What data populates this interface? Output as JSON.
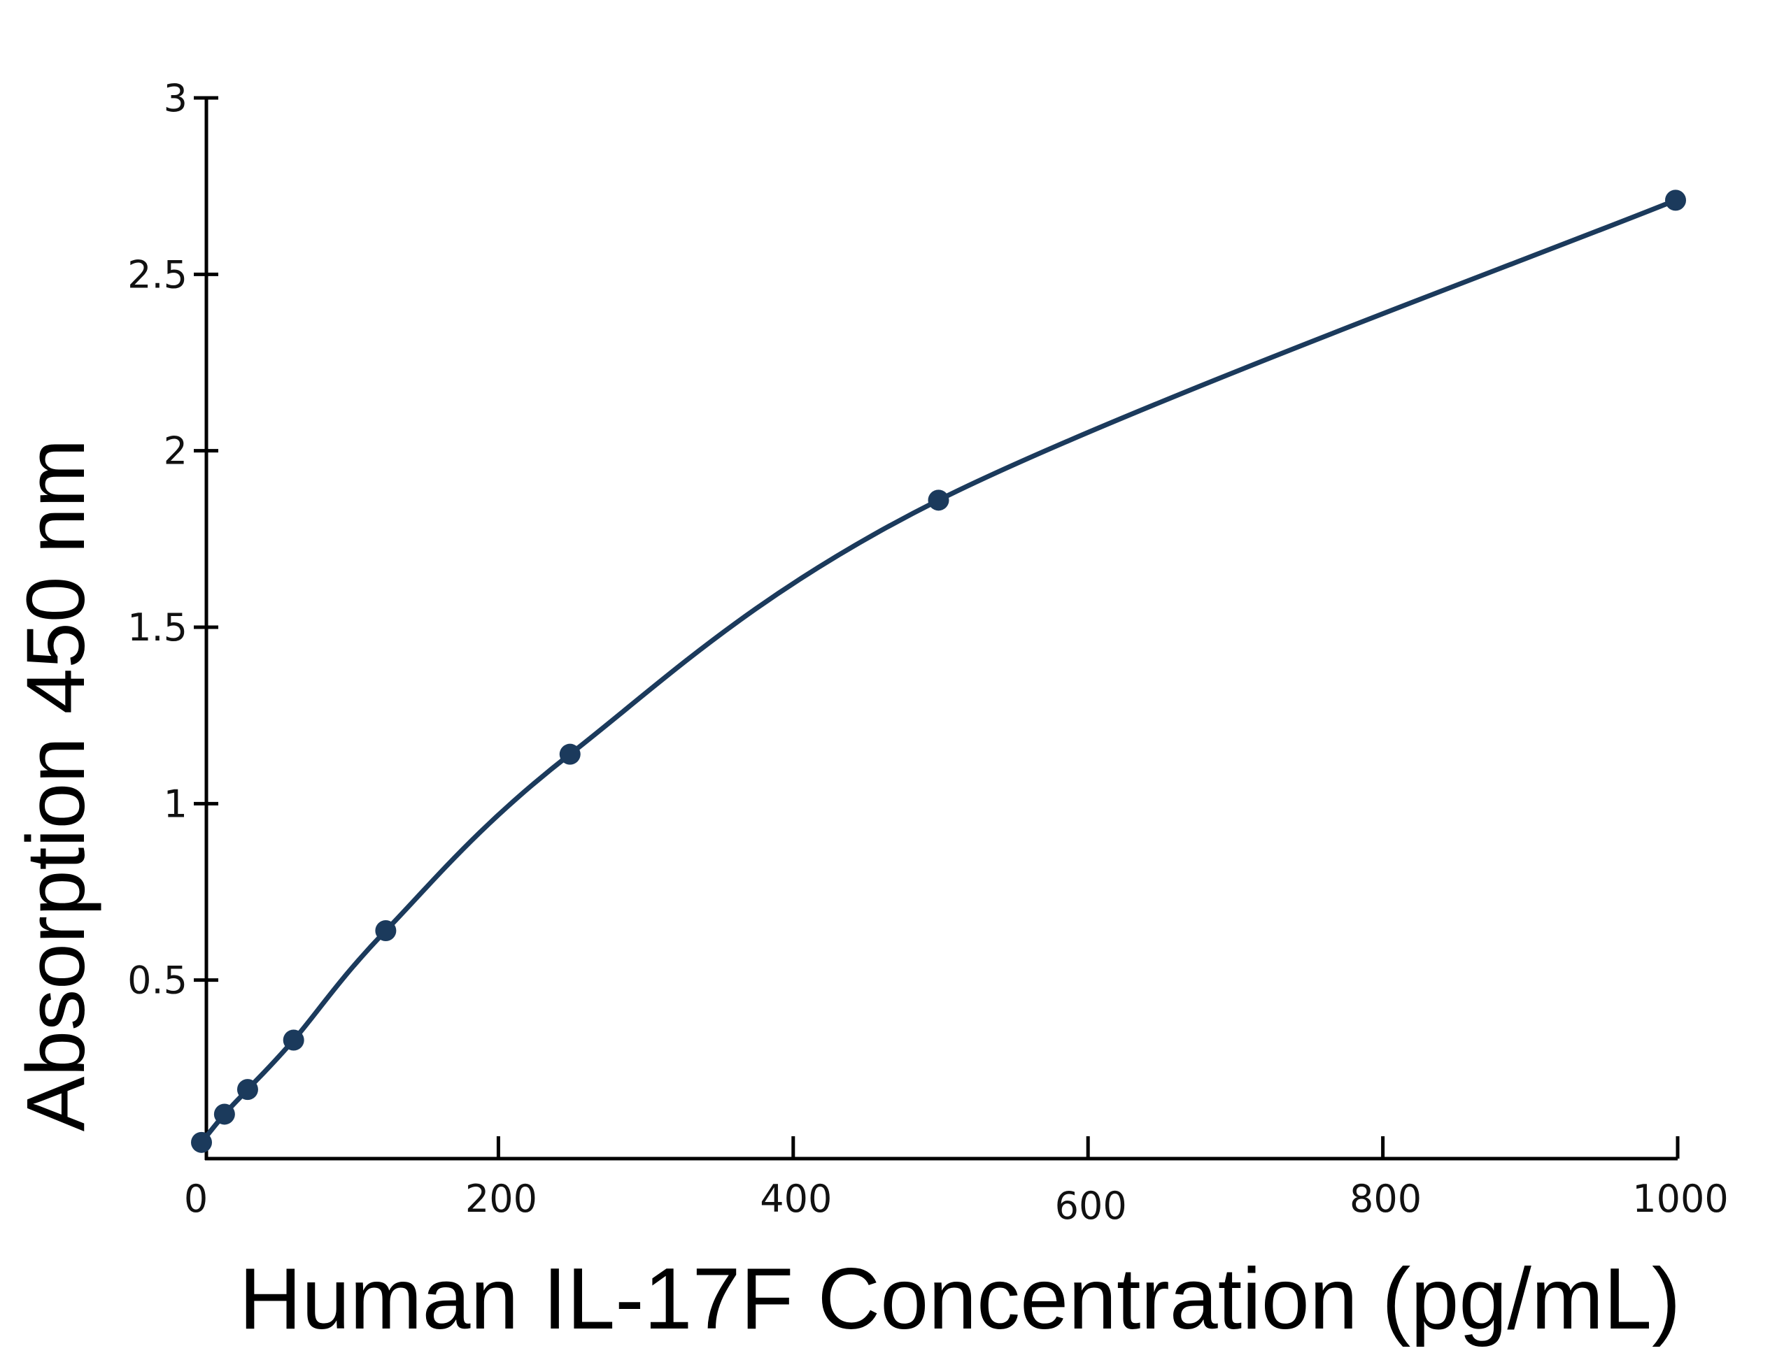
{
  "chart_data": {
    "type": "line",
    "title": "",
    "xlabel": "Human IL-17F Concentration (pg/mL)",
    "ylabel": "Absorption 450 nm",
    "xlim": [
      0,
      1000
    ],
    "ylim": [
      0,
      3
    ],
    "x_ticks": [
      0,
      200,
      400,
      600,
      800,
      1000
    ],
    "x_tick_labels": [
      "0",
      "200",
      "400",
      "600",
      "800",
      "1000"
    ],
    "y_ticks": [
      0.5,
      1,
      1.5,
      2,
      2.5,
      3
    ],
    "y_tick_labels": [
      "0.5",
      "1",
      "1.5",
      "2",
      "2.5",
      "3"
    ],
    "grid": false,
    "legend": "none",
    "series": [
      {
        "x": [
          0,
          15.6,
          31.3,
          62.5,
          125,
          250,
          500,
          1000
        ],
        "y": [
          0.04,
          0.12,
          0.19,
          0.33,
          0.64,
          1.14,
          1.86,
          2.71
        ],
        "color": "#1b3a5c",
        "markers": true,
        "fit_curve": true
      }
    ]
  }
}
